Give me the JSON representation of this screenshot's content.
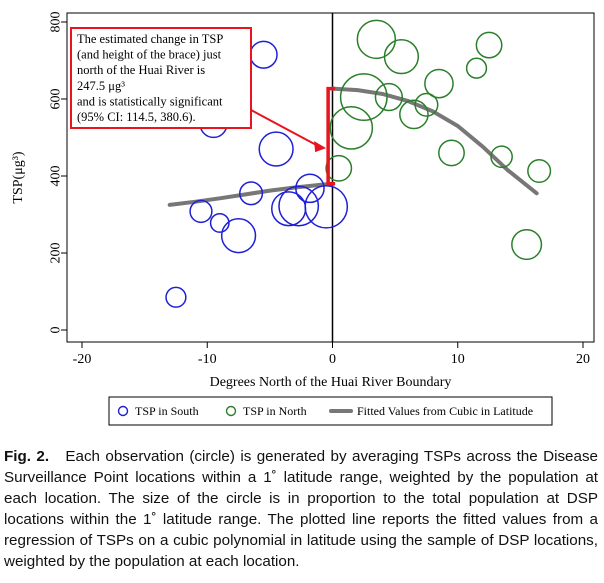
{
  "chart_data": {
    "type": "scatter",
    "xlabel": "Degrees North of the Huai River Boundary",
    "ylabel": "TSP(μg³)",
    "xlim": [
      -20,
      20
    ],
    "ylim": [
      0,
      800
    ],
    "xticks": [
      "-20",
      "-10",
      "0",
      "10",
      "20"
    ],
    "yticks": [
      "0",
      "200",
      "400",
      "600",
      "800"
    ],
    "xtick_values": [
      -20,
      -10,
      0,
      10,
      20
    ],
    "ytick_values": [
      0,
      200,
      400,
      600,
      800
    ],
    "grid": false,
    "legend_position": "bottom",
    "series": [
      {
        "name": "TSP in South",
        "color": "#1f1fd6",
        "points": [
          {
            "x": -12.5,
            "y": 85,
            "size": 0.35
          },
          {
            "x": -10.5,
            "y": 308,
            "size": 0.42
          },
          {
            "x": -9.0,
            "y": 278,
            "size": 0.3
          },
          {
            "x": -7.5,
            "y": 245,
            "size": 0.85
          },
          {
            "x": -9.5,
            "y": 535,
            "size": 0.6
          },
          {
            "x": -6.5,
            "y": 355,
            "size": 0.45
          },
          {
            "x": -5.5,
            "y": 715,
            "size": 0.6
          },
          {
            "x": -4.5,
            "y": 470,
            "size": 0.85
          },
          {
            "x": -3.5,
            "y": 315,
            "size": 0.85
          },
          {
            "x": -2.7,
            "y": 322,
            "size": 1.05
          },
          {
            "x": -1.8,
            "y": 368,
            "size": 0.65
          },
          {
            "x": -0.5,
            "y": 320,
            "size": 1.15
          }
        ]
      },
      {
        "name": "TSP in North",
        "color": "#2a7f2a",
        "points": [
          {
            "x": 0.5,
            "y": 420,
            "size": 0.55
          },
          {
            "x": 1.5,
            "y": 525,
            "size": 1.15
          },
          {
            "x": 2.5,
            "y": 605,
            "size": 1.3
          },
          {
            "x": 3.5,
            "y": 755,
            "size": 1.0
          },
          {
            "x": 4.5,
            "y": 605,
            "size": 0.6
          },
          {
            "x": 5.5,
            "y": 710,
            "size": 0.85
          },
          {
            "x": 6.5,
            "y": 560,
            "size": 0.65
          },
          {
            "x": 7.5,
            "y": 585,
            "size": 0.45
          },
          {
            "x": 8.5,
            "y": 640,
            "size": 0.65
          },
          {
            "x": 9.5,
            "y": 460,
            "size": 0.55
          },
          {
            "x": 11.5,
            "y": 680,
            "size": 0.35
          },
          {
            "x": 12.5,
            "y": 740,
            "size": 0.55
          },
          {
            "x": 13.5,
            "y": 450,
            "size": 0.4
          },
          {
            "x": 15.5,
            "y": 222,
            "size": 0.7
          },
          {
            "x": 16.5,
            "y": 413,
            "size": 0.45
          }
        ]
      },
      {
        "name": "Fitted Values from Cubic in Latitude",
        "color": "#777777",
        "type": "line",
        "segments": [
          {
            "x": [
              -13,
              -11,
              -9,
              -7,
              -5,
              -3,
              -1,
              0
            ],
            "y": [
              325,
              333,
              342,
              352,
              362,
              370,
              377,
              380
            ]
          },
          {
            "x": [
              0,
              2,
              4,
              6,
              8,
              10,
              12,
              14,
              16.3
            ],
            "y": [
              627,
              623,
              613,
              595,
              568,
              530,
              476,
              415,
              355
            ]
          }
        ]
      }
    ],
    "annotation": {
      "lines": [
        "The estimated change in TSP",
        "(and height of the brace) just",
        "north of the Huai River is",
        "247.5 μg³",
        "and is statistically significant",
        "(95% CI: 114.5, 380.6)."
      ],
      "brace_x": -0.35,
      "brace_from": 380,
      "brace_to": 627,
      "color": "#e8141e"
    }
  },
  "caption": {
    "label": "Fig. 2.",
    "text": "Each observation (circle) is generated by averaging TSPs across the Disease Surveillance Point locations within a 1˚ latitude range, weighted by the population at each location. The size of the circle is in proportion to the total population at DSP locations within the 1˚ latitude range. The plotted line reports the fitted values from a regression of TSPs on a cubic polynomial in latitude using the sample of DSP locations, weighted by the population at each location."
  }
}
